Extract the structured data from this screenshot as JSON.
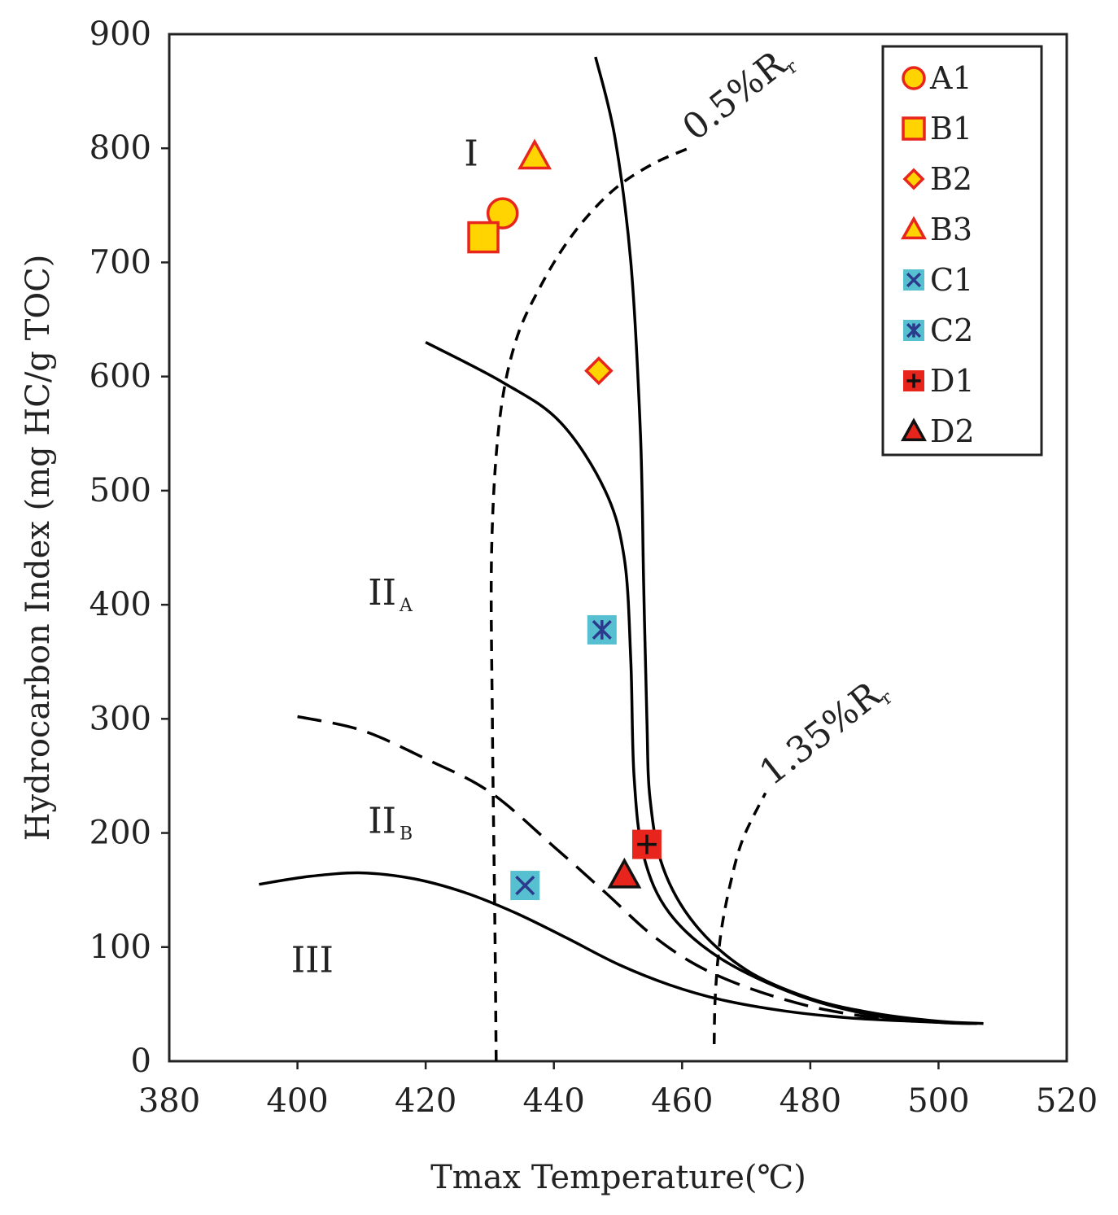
{
  "chart_data": {
    "type": "scatter",
    "xlabel": "Tmax Temperature(℃)",
    "ylabel": "Hydrocarbon Index (mg HC/g TOC)",
    "xlim": [
      380,
      520
    ],
    "ylim": [
      0,
      900
    ],
    "x_ticks": [
      380,
      400,
      420,
      440,
      460,
      480,
      500,
      520
    ],
    "y_ticks": [
      0,
      100,
      200,
      300,
      400,
      500,
      600,
      700,
      800,
      900
    ],
    "legend_position": "top-right",
    "region_labels": [
      {
        "name": "I",
        "x": 426,
        "y": 785
      },
      {
        "name": "II",
        "sub": "A",
        "x": 411,
        "y": 400
      },
      {
        "name": "II",
        "sub": "B",
        "x": 411,
        "y": 200
      },
      {
        "name": "III",
        "x": 399,
        "y": 78
      }
    ],
    "isoreflectance_labels": [
      {
        "text": "0.5%R",
        "sub": "r",
        "x": 461,
        "y": 800
      },
      {
        "text": "1.35%R",
        "sub": "r",
        "x": 473,
        "y": 235
      }
    ],
    "series": [
      {
        "name": "A1",
        "marker": "circle",
        "fill": "#ffd400",
        "stroke": "#e8251c",
        "points": [
          [
            432,
            743
          ]
        ]
      },
      {
        "name": "B1",
        "marker": "square",
        "fill": "#ffd400",
        "stroke": "#e8251c",
        "points": [
          [
            429,
            722
          ]
        ]
      },
      {
        "name": "B2",
        "marker": "diamond",
        "fill": "#ffd400",
        "stroke": "#e8251c",
        "points": [
          [
            447,
            605
          ]
        ]
      },
      {
        "name": "B3",
        "marker": "triangle",
        "fill": "#ffd400",
        "stroke": "#e8251c",
        "points": [
          [
            437,
            793
          ]
        ]
      },
      {
        "name": "C1",
        "marker": "x-box",
        "fill": "#57c0d0",
        "stroke": "#2b3a8c",
        "points": [
          [
            435.5,
            154
          ]
        ]
      },
      {
        "name": "C2",
        "marker": "star-box",
        "fill": "#57c0d0",
        "stroke": "#2b3a8c",
        "points": [
          [
            447.5,
            378
          ]
        ]
      },
      {
        "name": "D1",
        "marker": "plus-box",
        "fill": "#e8251c",
        "stroke": "#111111",
        "points": [
          [
            454.5,
            190
          ]
        ]
      },
      {
        "name": "D2",
        "marker": "triangle",
        "fill": "#e8251c",
        "stroke": "#111111",
        "points": [
          [
            451,
            163
          ]
        ]
      }
    ],
    "curves": [
      {
        "name": "type-I-boundary",
        "style": "solid",
        "points": [
          [
            446.5,
            880
          ],
          [
            449.5,
            810
          ],
          [
            452,
            700
          ],
          [
            453.5,
            550
          ],
          [
            454,
            420
          ],
          [
            454.5,
            300
          ],
          [
            455,
            230
          ],
          [
            457,
            170
          ],
          [
            462,
            120
          ],
          [
            470,
            80
          ],
          [
            480,
            55
          ],
          [
            490,
            42
          ],
          [
            500,
            35
          ],
          [
            507,
            33
          ]
        ]
      },
      {
        "name": "type-IIA-boundary",
        "style": "solid",
        "points": [
          [
            420,
            630
          ],
          [
            432,
            595
          ],
          [
            441,
            560
          ],
          [
            448,
            500
          ],
          [
            451,
            440
          ],
          [
            452,
            350
          ],
          [
            452.5,
            250
          ],
          [
            454,
            180
          ],
          [
            458,
            130
          ],
          [
            466,
            90
          ],
          [
            478,
            58
          ],
          [
            490,
            40
          ],
          [
            500,
            34
          ],
          [
            506,
            33
          ]
        ]
      },
      {
        "name": "type-IIB-boundary",
        "style": "dashed",
        "points": [
          [
            400,
            302
          ],
          [
            410,
            290
          ],
          [
            420,
            265
          ],
          [
            430,
            236
          ],
          [
            440,
            188
          ],
          [
            448,
            148
          ],
          [
            455,
            112
          ],
          [
            462,
            85
          ],
          [
            470,
            65
          ],
          [
            480,
            48
          ],
          [
            490,
            38
          ],
          [
            496,
            35
          ]
        ]
      },
      {
        "name": "type-III-boundary",
        "style": "solid",
        "points": [
          [
            394,
            155
          ],
          [
            402,
            162
          ],
          [
            410,
            165
          ],
          [
            418,
            160
          ],
          [
            426,
            148
          ],
          [
            434,
            130
          ],
          [
            442,
            108
          ],
          [
            450,
            85
          ],
          [
            458,
            67
          ],
          [
            466,
            54
          ],
          [
            476,
            44
          ],
          [
            486,
            38
          ],
          [
            496,
            35
          ],
          [
            505,
            33
          ]
        ]
      },
      {
        "name": "0.5%Rr-isoreflectance",
        "style": "short-dashed",
        "points": [
          [
            431,
            0
          ],
          [
            430.8,
            120
          ],
          [
            430.4,
            300
          ],
          [
            430.3,
            450
          ],
          [
            431.5,
            560
          ],
          [
            434,
            630
          ],
          [
            438,
            680
          ],
          [
            443,
            725
          ],
          [
            449,
            762
          ],
          [
            455,
            785
          ],
          [
            461,
            800
          ]
        ]
      },
      {
        "name": "1.35%Rr-isoreflectance",
        "style": "short-dashed",
        "points": [
          [
            465,
            15
          ],
          [
            465.2,
            60
          ],
          [
            466,
            110
          ],
          [
            467.5,
            155
          ],
          [
            469.5,
            195
          ],
          [
            473,
            235
          ]
        ]
      }
    ]
  }
}
